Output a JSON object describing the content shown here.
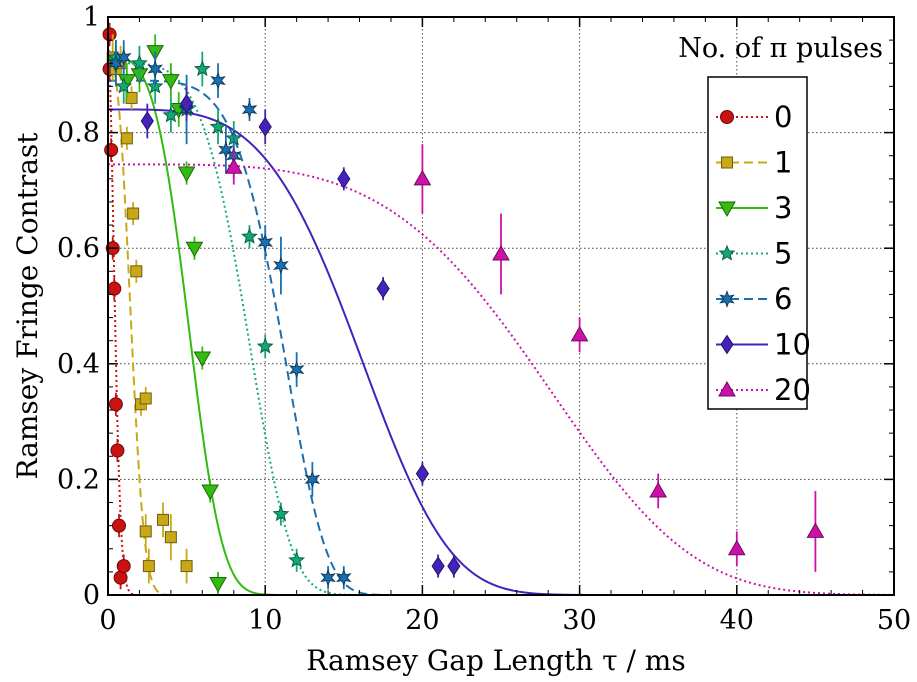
{
  "chart_data": {
    "type": "scatter",
    "xlabel": "Ramsey Gap Length τ / ms",
    "ylabel": "Ramsey Fringe Contrast",
    "annotation": "No. of π pulses",
    "xlim": [
      0,
      50
    ],
    "ylim": [
      0,
      1
    ],
    "xticks": [
      0,
      10,
      20,
      30,
      40,
      50
    ],
    "yticks": [
      0,
      0.2,
      0.4,
      0.6,
      0.8,
      1
    ],
    "xtick_labels": [
      "0",
      "10",
      "20",
      "30",
      "40",
      "50"
    ],
    "ytick_labels": [
      "0",
      "0.2",
      "0.4",
      "0.6",
      "0.8",
      "1"
    ],
    "grid": true,
    "legend_position": "right",
    "series": [
      {
        "name": "0",
        "color": "#cc1111",
        "marker": "circle",
        "dash": "dotted",
        "fit": {
          "A": 0.96,
          "T": 0.55,
          "n": 1.8
        },
        "points": [
          [
            0.1,
            0.97
          ],
          [
            0.1,
            0.91
          ],
          [
            0.2,
            0.77
          ],
          [
            0.3,
            0.6
          ],
          [
            0.4,
            0.53
          ],
          [
            0.5,
            0.33
          ],
          [
            0.6,
            0.25
          ],
          [
            0.7,
            0.12
          ],
          [
            0.8,
            0.03
          ],
          [
            1.0,
            0.05
          ]
        ],
        "errors": [
          0.02,
          0.02,
          0.02,
          0.02,
          0.02,
          0.02,
          0.02,
          0.02,
          0.02,
          0.02
        ]
      },
      {
        "name": "1",
        "color": "#c9a817",
        "marker": "square",
        "dash": "dashed",
        "fit": {
          "A": 0.93,
          "T": 1.7,
          "n": 2.6
        },
        "points": [
          [
            0.3,
            0.93
          ],
          [
            0.5,
            0.91
          ],
          [
            0.8,
            0.92
          ],
          [
            1.2,
            0.79
          ],
          [
            1.5,
            0.86
          ],
          [
            1.6,
            0.66
          ],
          [
            1.8,
            0.56
          ],
          [
            2.1,
            0.33
          ],
          [
            2.4,
            0.34
          ],
          [
            2.4,
            0.11
          ],
          [
            2.6,
            0.05
          ],
          [
            3.5,
            0.13
          ],
          [
            4.0,
            0.1
          ],
          [
            5.0,
            0.05
          ]
        ],
        "errors": [
          0.04,
          0.03,
          0.03,
          0.02,
          0.02,
          0.02,
          0.02,
          0.02,
          0.02,
          0.03,
          0.03,
          0.03,
          0.04,
          0.03
        ]
      },
      {
        "name": "3",
        "color": "#33bb11",
        "marker": "triangle-down",
        "dash": "solid",
        "fit": {
          "A": 0.93,
          "T": 5.7,
          "n": 3.5
        },
        "points": [
          [
            0.5,
            0.92
          ],
          [
            1.2,
            0.89
          ],
          [
            2.0,
            0.9
          ],
          [
            3.0,
            0.94
          ],
          [
            4.0,
            0.89
          ],
          [
            4.5,
            0.84
          ],
          [
            5.0,
            0.73
          ],
          [
            5.5,
            0.6
          ],
          [
            6.0,
            0.41
          ],
          [
            6.5,
            0.18
          ],
          [
            7.0,
            0.02
          ]
        ],
        "errors": [
          0.03,
          0.03,
          0.03,
          0.03,
          0.03,
          0.03,
          0.02,
          0.02,
          0.02,
          0.02,
          0.02
        ]
      },
      {
        "name": "5",
        "color": "#11aa77",
        "marker": "star5",
        "dash": "dotted",
        "fit": {
          "A": 0.92,
          "T": 9.6,
          "n": 4.5
        },
        "points": [
          [
            0.5,
            0.93
          ],
          [
            1.0,
            0.88
          ],
          [
            2.0,
            0.92
          ],
          [
            3.0,
            0.88
          ],
          [
            4.0,
            0.83
          ],
          [
            5.0,
            0.84
          ],
          [
            6.0,
            0.91
          ],
          [
            7.0,
            0.81
          ],
          [
            8.0,
            0.79
          ],
          [
            9.0,
            0.62
          ],
          [
            10.0,
            0.43
          ],
          [
            11.0,
            0.14
          ],
          [
            12.0,
            0.06
          ]
        ],
        "errors": [
          0.03,
          0.03,
          0.03,
          0.03,
          0.03,
          0.04,
          0.03,
          0.03,
          0.03,
          0.02,
          0.02,
          0.02,
          0.02
        ]
      },
      {
        "name": "6",
        "color": "#1a6fb0",
        "marker": "star6",
        "dash": "dashed",
        "fit": {
          "A": 0.89,
          "T": 11.8,
          "n": 5.5
        },
        "points": [
          [
            0.5,
            0.92
          ],
          [
            1.0,
            0.93
          ],
          [
            3.0,
            0.91
          ],
          [
            5.0,
            0.84
          ],
          [
            7.0,
            0.89
          ],
          [
            7.5,
            0.77
          ],
          [
            8.0,
            0.76
          ],
          [
            9.0,
            0.84
          ],
          [
            10.0,
            0.61
          ],
          [
            11.0,
            0.57
          ],
          [
            12.0,
            0.39
          ],
          [
            13.0,
            0.2
          ],
          [
            14.0,
            0.03
          ],
          [
            15.0,
            0.03
          ]
        ],
        "errors": [
          0.04,
          0.03,
          0.03,
          0.06,
          0.03,
          0.04,
          0.04,
          0.02,
          0.03,
          0.05,
          0.03,
          0.03,
          0.02,
          0.02
        ]
      },
      {
        "name": "10",
        "color": "#4422bb",
        "marker": "diamond",
        "dash": "solid",
        "fit": {
          "A": 0.84,
          "T": 17.5,
          "n": 4.0
        },
        "points": [
          [
            2.5,
            0.82
          ],
          [
            5.0,
            0.85
          ],
          [
            10.0,
            0.81
          ],
          [
            15.0,
            0.72
          ],
          [
            17.5,
            0.53
          ],
          [
            20.0,
            0.21
          ],
          [
            21.0,
            0.05
          ],
          [
            22.0,
            0.05
          ]
        ],
        "errors": [
          0.03,
          0.03,
          0.03,
          0.02,
          0.02,
          0.02,
          0.02,
          0.02
        ]
      },
      {
        "name": "20",
        "color": "#cc11aa",
        "marker": "triangle-up",
        "dash": "dotted",
        "fit": {
          "A": 0.745,
          "T": 30.2,
          "n": 4.2
        },
        "points": [
          [
            8.0,
            0.74
          ],
          [
            20.0,
            0.72
          ],
          [
            25.0,
            0.59
          ],
          [
            30.0,
            0.45
          ],
          [
            35.0,
            0.18
          ],
          [
            40.0,
            0.08
          ],
          [
            45.0,
            0.11
          ]
        ],
        "errors": [
          0.03,
          0.06,
          0.07,
          0.03,
          0.03,
          0.03,
          0.07
        ]
      }
    ]
  }
}
